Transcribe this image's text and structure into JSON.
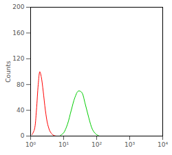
{
  "chart_data": {
    "type": "line",
    "log": "x",
    "ylabel": "Counts",
    "xlim": [
      1,
      10000
    ],
    "xticks": [
      {
        "value": 1,
        "label": "10⁰"
      },
      {
        "value": 10,
        "label": "10¹"
      },
      {
        "value": 100,
        "label": "10²"
      },
      {
        "value": 1000,
        "label": "10³"
      },
      {
        "value": 10000,
        "label": "10⁴"
      }
    ],
    "ylim": [
      0,
      200
    ],
    "yticks": [
      0,
      40,
      80,
      120,
      160,
      200
    ],
    "series": [
      {
        "color": "#ff0000",
        "x": [
          1.1,
          1.3,
          1.5,
          1.7,
          1.9,
          2.1,
          2.4,
          2.8,
          3.3,
          4,
          5,
          6
        ],
        "values": [
          2,
          10,
          40,
          80,
          100,
          92,
          70,
          40,
          18,
          6,
          1,
          0
        ]
      },
      {
        "color": "#00cc00",
        "x": [
          8,
          10,
          13,
          17,
          22,
          28,
          35,
          45,
          58,
          75,
          95,
          120
        ],
        "values": [
          1,
          5,
          18,
          40,
          60,
          70,
          68,
          50,
          28,
          10,
          3,
          0
        ]
      }
    ]
  }
}
